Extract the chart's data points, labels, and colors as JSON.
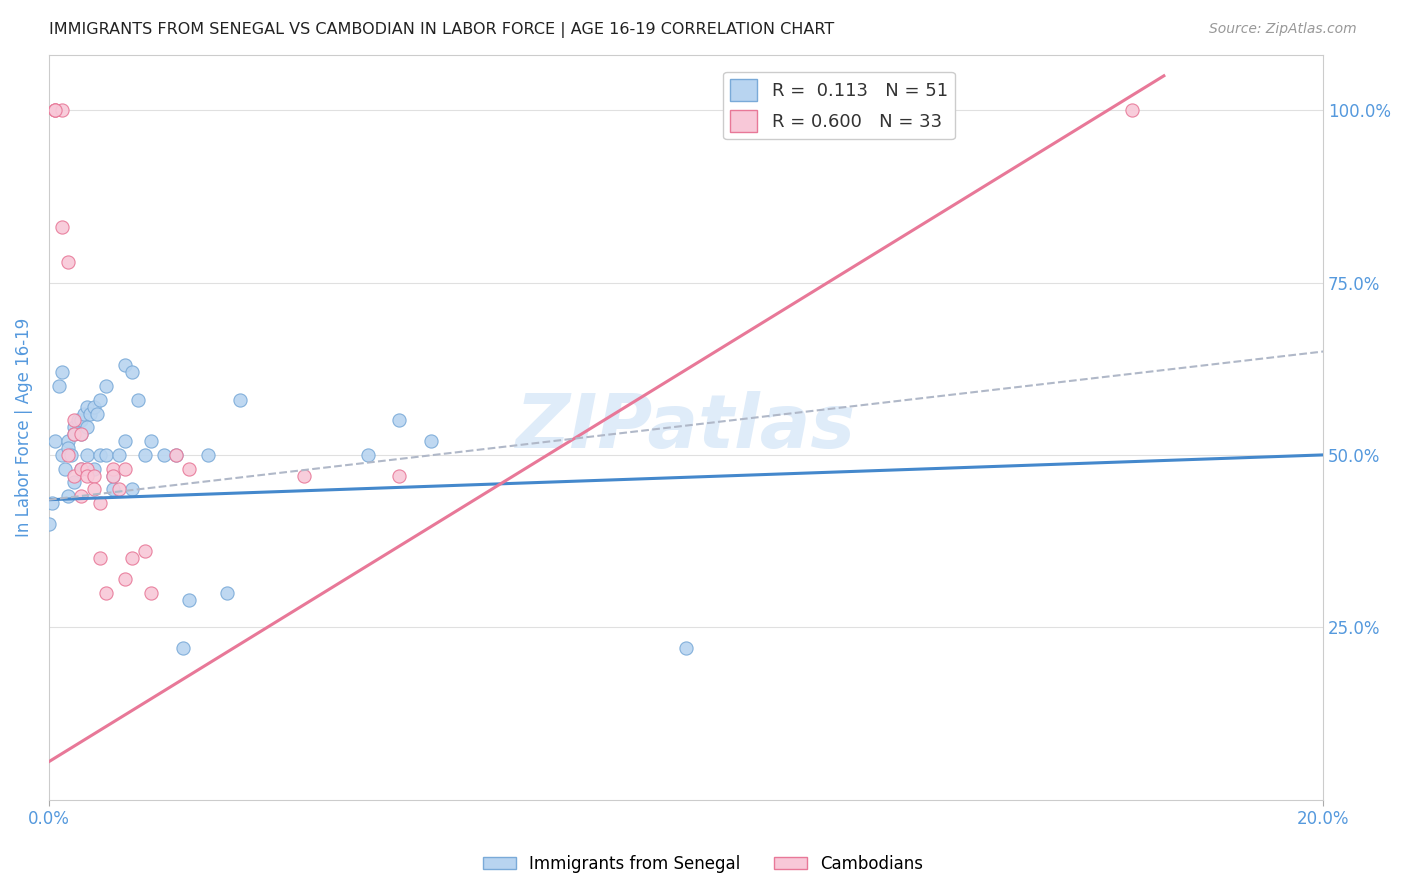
{
  "title": "IMMIGRANTS FROM SENEGAL VS CAMBODIAN IN LABOR FORCE | AGE 16-19 CORRELATION CHART",
  "source": "Source: ZipAtlas.com",
  "ylabel": "In Labor Force | Age 16-19",
  "x_min": 0.0,
  "x_max": 0.2,
  "y_min": 0.0,
  "y_max": 1.08,
  "x_tick_positions": [
    0.0,
    0.2
  ],
  "x_tick_labels": [
    "0.0%",
    "20.0%"
  ],
  "y_ticks": [
    0.25,
    0.5,
    0.75,
    1.0
  ],
  "y_tick_labels": [
    "25.0%",
    "50.0%",
    "75.0%",
    "100.0%"
  ],
  "watermark": "ZIPatlas",
  "senegal_color": "#b8d4f0",
  "senegal_edge": "#7aaad8",
  "cambodian_color": "#f8c8d8",
  "cambodian_edge": "#e87898",
  "senegal_line_color": "#4488cc",
  "cambodian_line_color": "#e87898",
  "dashed_line_color": "#b0b8c8",
  "bg_color": "#ffffff",
  "grid_color": "#e0e0e0",
  "title_color": "#222222",
  "right_tick_color": "#5599dd",
  "ylabel_color": "#5599dd",
  "marker_size": 90,
  "senegal_R": 0.113,
  "senegal_N": 51,
  "cambodian_R": 0.6,
  "cambodian_N": 33,
  "senegal_points_x": [
    0.0005,
    0.001,
    0.0015,
    0.002,
    0.002,
    0.0025,
    0.003,
    0.003,
    0.003,
    0.0035,
    0.004,
    0.004,
    0.004,
    0.0045,
    0.005,
    0.005,
    0.005,
    0.0055,
    0.006,
    0.006,
    0.006,
    0.0065,
    0.007,
    0.007,
    0.0075,
    0.008,
    0.008,
    0.009,
    0.009,
    0.01,
    0.01,
    0.011,
    0.012,
    0.012,
    0.013,
    0.013,
    0.014,
    0.015,
    0.016,
    0.018,
    0.02,
    0.021,
    0.022,
    0.025,
    0.028,
    0.03,
    0.05,
    0.055,
    0.06,
    0.0,
    0.1
  ],
  "senegal_points_y": [
    0.43,
    0.52,
    0.6,
    0.5,
    0.62,
    0.48,
    0.52,
    0.51,
    0.44,
    0.5,
    0.54,
    0.53,
    0.46,
    0.55,
    0.55,
    0.53,
    0.48,
    0.56,
    0.57,
    0.54,
    0.5,
    0.56,
    0.57,
    0.48,
    0.56,
    0.58,
    0.5,
    0.6,
    0.5,
    0.47,
    0.45,
    0.5,
    0.63,
    0.52,
    0.62,
    0.45,
    0.58,
    0.5,
    0.52,
    0.5,
    0.5,
    0.22,
    0.29,
    0.5,
    0.3,
    0.58,
    0.5,
    0.55,
    0.52,
    0.4,
    0.22
  ],
  "cambodian_points_x": [
    0.001,
    0.001,
    0.002,
    0.003,
    0.003,
    0.004,
    0.004,
    0.004,
    0.005,
    0.005,
    0.005,
    0.006,
    0.006,
    0.007,
    0.007,
    0.008,
    0.008,
    0.009,
    0.01,
    0.01,
    0.011,
    0.012,
    0.012,
    0.013,
    0.015,
    0.016,
    0.02,
    0.022,
    0.04,
    0.055,
    0.002,
    0.001,
    0.17
  ],
  "cambodian_points_y": [
    1.0,
    1.0,
    0.83,
    0.78,
    0.5,
    0.55,
    0.53,
    0.47,
    0.53,
    0.48,
    0.44,
    0.48,
    0.47,
    0.47,
    0.45,
    0.43,
    0.35,
    0.3,
    0.48,
    0.47,
    0.45,
    0.48,
    0.32,
    0.35,
    0.36,
    0.3,
    0.5,
    0.48,
    0.47,
    0.47,
    1.0,
    1.0,
    1.0
  ],
  "senegal_trend_x": [
    0.0,
    0.2
  ],
  "senegal_trend_y": [
    0.435,
    0.5
  ],
  "cambodian_trend_x": [
    0.0,
    0.175
  ],
  "cambodian_trend_y": [
    0.055,
    1.05
  ],
  "dashed_trend_x": [
    0.0,
    0.2
  ],
  "dashed_trend_y": [
    0.435,
    0.65
  ]
}
